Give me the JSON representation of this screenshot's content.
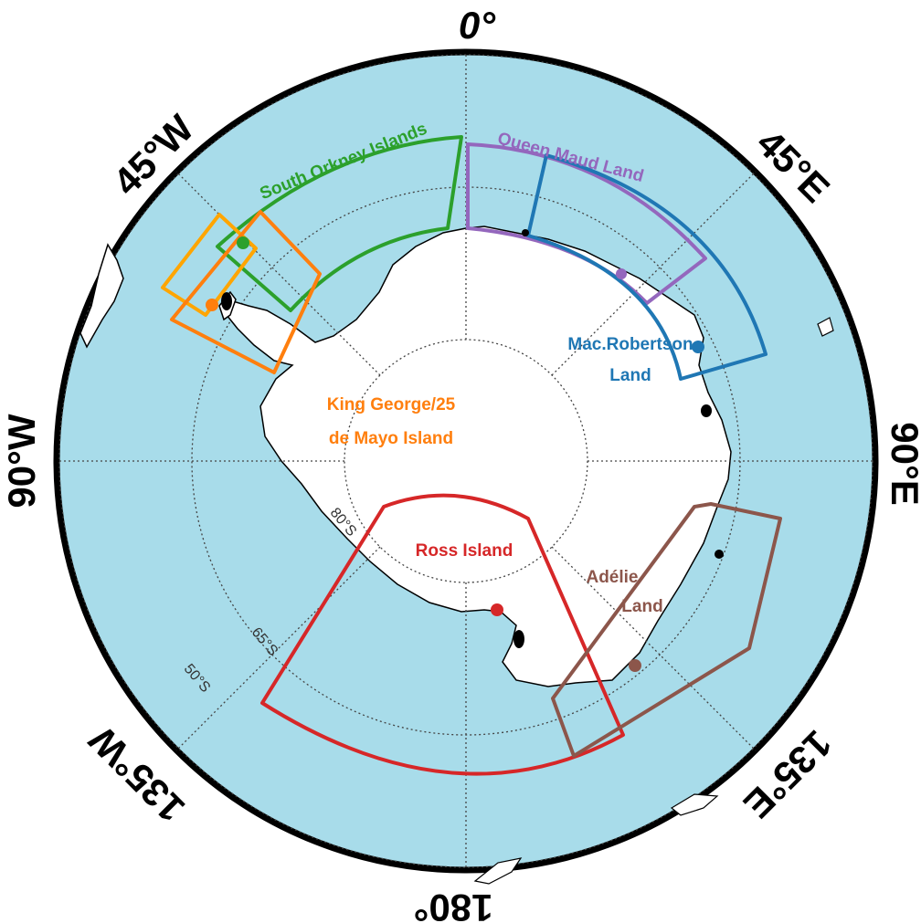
{
  "map": {
    "longitude_labels": {
      "lon_0": "0°",
      "lon_45e": "45°E",
      "lon_90e": "90°E",
      "lon_135e": "135°E",
      "lon_180": "180°",
      "lon_135w": "135°W",
      "lon_90w": "90°W",
      "lon_45w": "45°W"
    },
    "latitude_labels": {
      "lat_80": "80°S",
      "lat_65": "65°S",
      "lat_50": "50°S"
    },
    "regions": {
      "south_orkney": {
        "label": "South Orkney Islands",
        "color": "#2ca02c"
      },
      "queen_maud": {
        "label": "Queen Maud Land",
        "color": "#9467bd"
      },
      "mac_robertson": {
        "line1": "Mac.Robertson",
        "line2": "Land",
        "color": "#1f77b4"
      },
      "king_george": {
        "line1": "King George/25",
        "line2": "de Mayo Island",
        "color": "#ff7f0e",
        "color2": "#ffa500"
      },
      "ross": {
        "label": "Ross Island",
        "color": "#d62728"
      },
      "adelie": {
        "line1": "Adélie",
        "line2": "Land",
        "color": "#8c564b"
      }
    },
    "colors": {
      "ocean": "#a8dcea",
      "land": "#ffffff",
      "station": "#000000"
    }
  }
}
